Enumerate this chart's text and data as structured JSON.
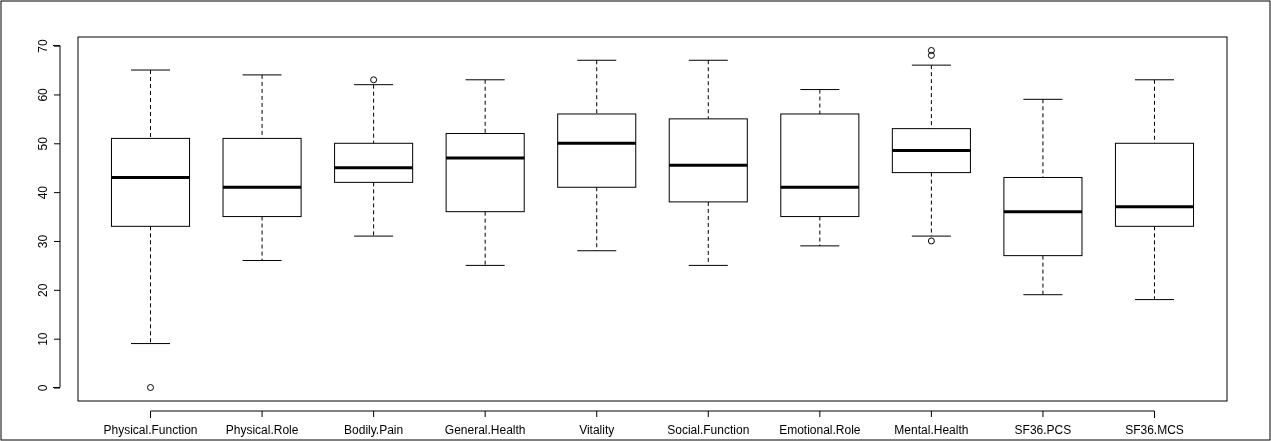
{
  "chart_data": {
    "type": "box",
    "categories": [
      "Physical.Function",
      "Physical.Role",
      "Bodily.Pain",
      "General.Health",
      "Vitality",
      "Social.Function",
      "Emotional.Role",
      "Mental.Health",
      "SF36.PCS",
      "SF36.MCS"
    ],
    "boxes": [
      {
        "low": 9,
        "q1": 33,
        "median": 43,
        "q3": 51,
        "high": 65,
        "outliers": [
          0
        ]
      },
      {
        "low": 26,
        "q1": 35,
        "median": 41,
        "q3": 51,
        "high": 64
      },
      {
        "low": 31,
        "q1": 42,
        "median": 45,
        "q3": 50,
        "high": 62,
        "outliers": [
          63
        ]
      },
      {
        "low": 25,
        "q1": 36,
        "median": 47,
        "q3": 52,
        "high": 63
      },
      {
        "low": 28,
        "q1": 41,
        "median": 50,
        "q3": 56,
        "high": 67
      },
      {
        "low": 25,
        "q1": 38,
        "median": 45.5,
        "q3": 55,
        "high": 67
      },
      {
        "low": 29,
        "q1": 35,
        "median": 41,
        "q3": 56,
        "high": 61
      },
      {
        "low": 31,
        "q1": 44,
        "median": 48.5,
        "q3": 53,
        "high": 66,
        "outliers": [
          30,
          68,
          69
        ]
      },
      {
        "low": 19,
        "q1": 27,
        "median": 36,
        "q3": 43,
        "high": 59
      },
      {
        "low": 18,
        "q1": 33,
        "median": 37,
        "q3": 50,
        "high": 63
      }
    ],
    "color": "#ffffff",
    "ylim": [
      -2.76,
      71.76
    ],
    "yticks": [
      0,
      10,
      20,
      30,
      40,
      50,
      60,
      70
    ],
    "grid": false
  }
}
